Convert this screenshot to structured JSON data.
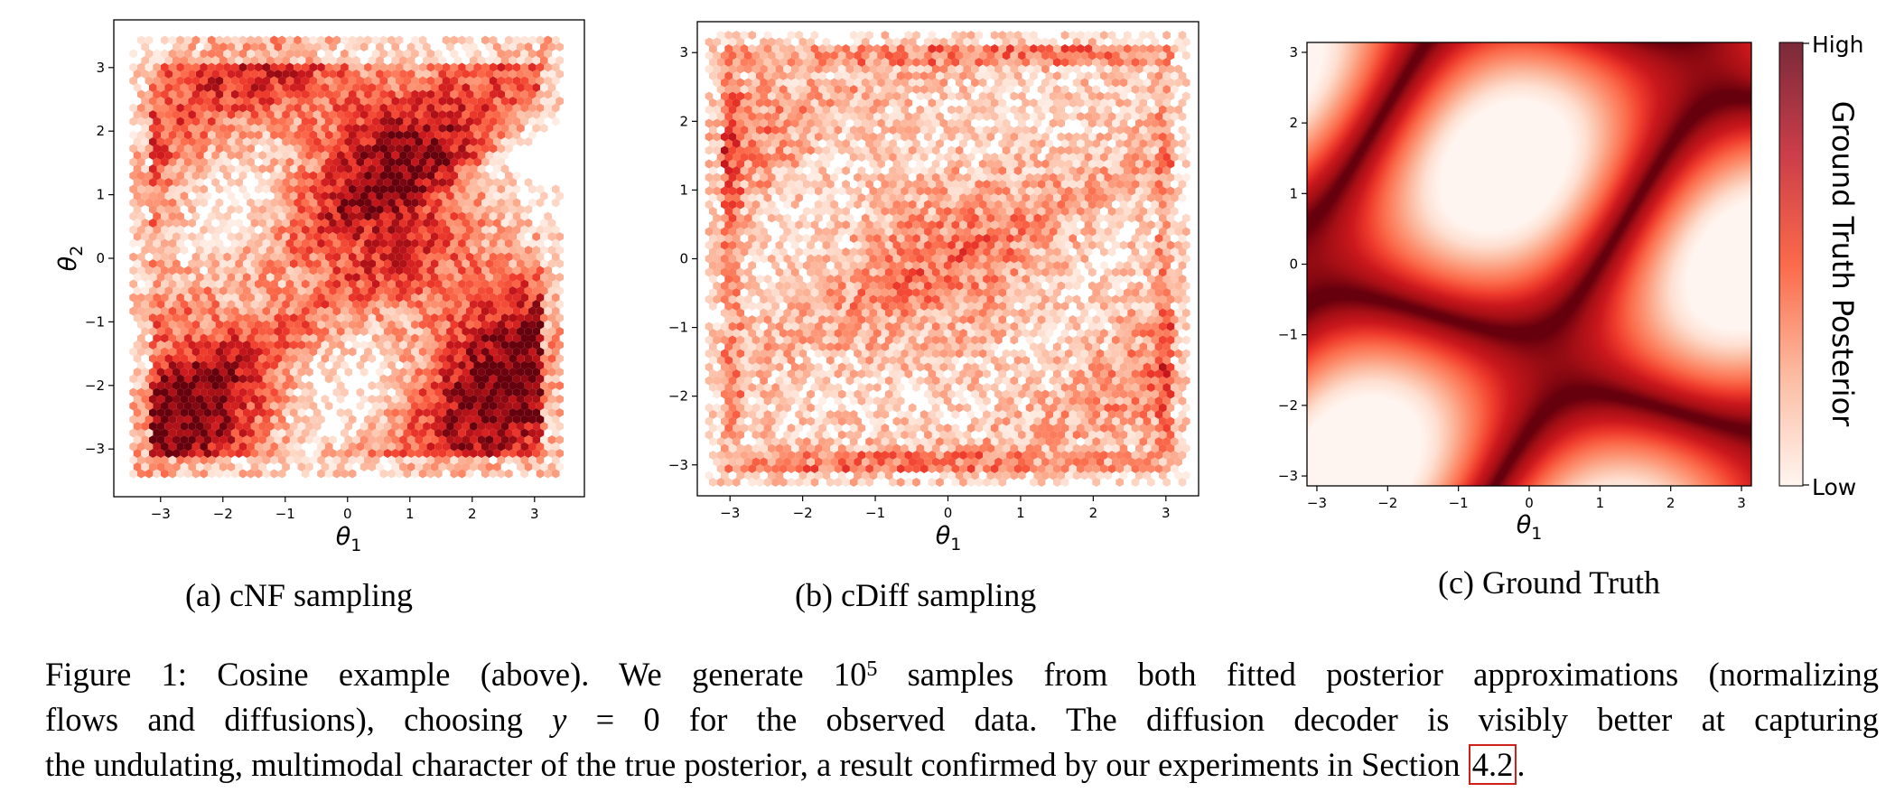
{
  "chart_data": [
    {
      "type": "hexbin",
      "panel": "a",
      "xlabel": "θ1",
      "ylabel": "θ2",
      "xlim": [
        -3.75,
        3.8
      ],
      "ylim": [
        -3.75,
        3.75
      ],
      "xticks": [
        -3,
        -2,
        -1,
        0,
        1,
        2,
        3
      ],
      "yticks": [
        -3,
        -2,
        -1,
        0,
        1,
        2,
        3
      ],
      "xticklabels": [
        "−3",
        "−2",
        "−1",
        "0",
        "1",
        "2",
        "3"
      ],
      "yticklabels": [
        "−3",
        "−2",
        "−1",
        "0",
        "1",
        "2",
        "3"
      ],
      "colormap": "Reds",
      "caption": "(a) cNF sampling"
    },
    {
      "type": "hexbin",
      "panel": "b",
      "xlabel": "θ1",
      "ylabel": "",
      "xlim": [
        -3.45,
        3.45
      ],
      "ylim": [
        -3.45,
        3.45
      ],
      "xticks": [
        -3,
        -2,
        -1,
        0,
        1,
        2,
        3
      ],
      "yticks": [
        -3,
        -2,
        -1,
        0,
        1,
        2,
        3
      ],
      "xticklabels": [
        "−3",
        "−2",
        "−1",
        "0",
        "1",
        "2",
        "3"
      ],
      "yticklabels": [
        "−3",
        "−2",
        "−1",
        "0",
        "1",
        "2",
        "3"
      ],
      "colormap": "Reds",
      "caption": "(b) cDiff sampling"
    },
    {
      "type": "heatmap",
      "panel": "c",
      "xlabel": "θ1",
      "ylabel": "",
      "xlim": [
        -3.14,
        3.14
      ],
      "ylim": [
        -3.14,
        3.14
      ],
      "xticks": [
        -3,
        -2,
        -1,
        0,
        1,
        2,
        3
      ],
      "yticks": [
        -3,
        -2,
        -1,
        0,
        1,
        2,
        3
      ],
      "xticklabels": [
        "−3",
        "−2",
        "−1",
        "0",
        "1",
        "2",
        "3"
      ],
      "yticklabels": [
        "−3",
        "−2",
        "−1",
        "0",
        "1",
        "2",
        "3"
      ],
      "colormap": "Reds",
      "colorbar": {
        "label": "Ground Truth Posterior",
        "high": "High",
        "low": "Low"
      },
      "caption": "(c) Ground Truth"
    }
  ],
  "caption": {
    "prefix": "Figure 1: Cosine example (above). We generate 10",
    "exponent": "5",
    "line1_rest": " samples from both fitted posterior approximations (normalizing",
    "line2_a": "flows and diffusions), choosing ",
    "line2_math": "y",
    "line2_b": " = 0 for the observed data. The diffusion decoder is visibly better at capturing",
    "line3_a": "the undulating, multimodal character of the true posterior, a result confirmed by our experiments in Section ",
    "ref": "4.2",
    "line3_end": "."
  },
  "colors": {
    "reds_low": "#fff5f0",
    "reds_mid": "#fb6a4a",
    "reds_high": "#67000d"
  }
}
